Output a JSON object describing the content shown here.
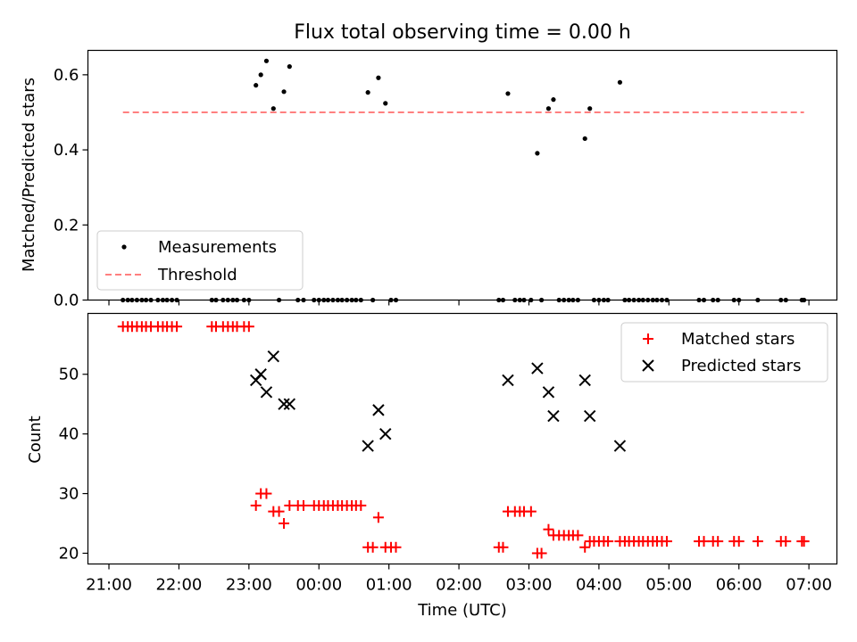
{
  "chart_data": [
    {
      "type": "scatter",
      "title": "Flux total observing time = 0.00 h",
      "xlabel": "",
      "ylabel": "Matched/Predicted stars",
      "x_unit": "hours after 21:00 UTC",
      "xlim": [
        -0.3,
        10.4
      ],
      "ylim": [
        0,
        0.665
      ],
      "yticks": [
        "0.0",
        "0.2",
        "0.4",
        "0.6"
      ],
      "legend_position": "lower-left",
      "series": [
        {
          "name": "Measurements",
          "style": "dot",
          "color": "#000000",
          "points": [
            [
              0.2,
              0
            ],
            [
              0.27,
              0
            ],
            [
              0.33,
              0
            ],
            [
              0.4,
              0
            ],
            [
              0.47,
              0
            ],
            [
              0.53,
              0
            ],
            [
              0.6,
              0
            ],
            [
              0.7,
              0
            ],
            [
              0.77,
              0
            ],
            [
              0.83,
              0
            ],
            [
              0.9,
              0
            ],
            [
              0.97,
              0
            ],
            [
              1.47,
              0
            ],
            [
              1.53,
              0
            ],
            [
              1.63,
              0
            ],
            [
              1.7,
              0
            ],
            [
              1.77,
              0
            ],
            [
              1.83,
              0
            ],
            [
              1.93,
              0
            ],
            [
              2.0,
              0
            ],
            [
              2.1,
              0.572
            ],
            [
              2.17,
              0.6
            ],
            [
              2.25,
              0.637
            ],
            [
              2.35,
              0.51
            ],
            [
              2.43,
              0
            ],
            [
              2.5,
              0.555
            ],
            [
              2.58,
              0.622
            ],
            [
              2.7,
              0
            ],
            [
              2.78,
              0
            ],
            [
              2.93,
              0
            ],
            [
              3.0,
              0
            ],
            [
              3.07,
              0
            ],
            [
              3.13,
              0
            ],
            [
              3.2,
              0
            ],
            [
              3.27,
              0
            ],
            [
              3.33,
              0
            ],
            [
              3.4,
              0
            ],
            [
              3.47,
              0
            ],
            [
              3.53,
              0
            ],
            [
              3.6,
              0
            ],
            [
              3.7,
              0.553
            ],
            [
              3.77,
              0
            ],
            [
              3.85,
              0.592
            ],
            [
              3.95,
              0.524
            ],
            [
              4.03,
              0
            ],
            [
              4.1,
              0
            ],
            [
              5.57,
              0
            ],
            [
              5.63,
              0
            ],
            [
              5.7,
              0.55
            ],
            [
              5.8,
              0
            ],
            [
              5.87,
              0
            ],
            [
              5.93,
              0
            ],
            [
              6.03,
              0
            ],
            [
              6.12,
              0.391
            ],
            [
              6.18,
              0
            ],
            [
              6.28,
              0.51
            ],
            [
              6.35,
              0.534
            ],
            [
              6.43,
              0
            ],
            [
              6.5,
              0
            ],
            [
              6.57,
              0
            ],
            [
              6.63,
              0
            ],
            [
              6.7,
              0
            ],
            [
              6.8,
              0.43
            ],
            [
              6.87,
              0.51
            ],
            [
              6.93,
              0
            ],
            [
              7.0,
              0
            ],
            [
              7.07,
              0
            ],
            [
              7.13,
              0
            ],
            [
              7.3,
              0.58
            ],
            [
              7.37,
              0
            ],
            [
              7.43,
              0
            ],
            [
              7.5,
              0
            ],
            [
              7.57,
              0
            ],
            [
              7.63,
              0
            ],
            [
              7.7,
              0
            ],
            [
              7.77,
              0
            ],
            [
              7.83,
              0
            ],
            [
              7.9,
              0
            ],
            [
              7.97,
              0
            ],
            [
              8.43,
              0
            ],
            [
              8.5,
              0
            ],
            [
              8.63,
              0
            ],
            [
              8.7,
              0
            ],
            [
              8.93,
              0
            ],
            [
              9.0,
              0
            ],
            [
              9.27,
              0
            ],
            [
              9.6,
              0
            ],
            [
              9.67,
              0
            ],
            [
              9.9,
              0
            ],
            [
              9.93,
              0
            ]
          ]
        },
        {
          "name": "Threshold",
          "style": "dashed-line",
          "color": "#ff7f7f",
          "points": [
            [
              0.2,
              0.5
            ],
            [
              9.93,
              0.5
            ]
          ]
        }
      ]
    },
    {
      "type": "scatter",
      "title": "",
      "xlabel": "Time (UTC)",
      "ylabel": "Count",
      "x_unit": "hours after 21:00 UTC",
      "xlim": [
        -0.3,
        10.4
      ],
      "ylim": [
        18.2,
        60.2
      ],
      "yticks": [
        "20",
        "30",
        "40",
        "50"
      ],
      "xticks": [
        "21:00",
        "22:00",
        "23:00",
        "00:00",
        "01:00",
        "02:00",
        "03:00",
        "04:00",
        "05:00",
        "06:00",
        "07:00"
      ],
      "legend_position": "upper-right",
      "series": [
        {
          "name": "Matched stars",
          "marker": "plus",
          "color": "#ff0000",
          "points": [
            [
              0.2,
              58
            ],
            [
              0.27,
              58
            ],
            [
              0.33,
              58
            ],
            [
              0.4,
              58
            ],
            [
              0.47,
              58
            ],
            [
              0.53,
              58
            ],
            [
              0.6,
              58
            ],
            [
              0.7,
              58
            ],
            [
              0.77,
              58
            ],
            [
              0.83,
              58
            ],
            [
              0.9,
              58
            ],
            [
              0.97,
              58
            ],
            [
              1.47,
              58
            ],
            [
              1.53,
              58
            ],
            [
              1.63,
              58
            ],
            [
              1.7,
              58
            ],
            [
              1.77,
              58
            ],
            [
              1.83,
              58
            ],
            [
              1.93,
              58
            ],
            [
              2.0,
              58
            ],
            [
              2.1,
              28
            ],
            [
              2.17,
              30
            ],
            [
              2.25,
              30
            ],
            [
              2.35,
              27
            ],
            [
              2.43,
              27
            ],
            [
              2.5,
              25
            ],
            [
              2.58,
              28
            ],
            [
              2.7,
              28
            ],
            [
              2.78,
              28
            ],
            [
              2.93,
              28
            ],
            [
              3.0,
              28
            ],
            [
              3.07,
              28
            ],
            [
              3.13,
              28
            ],
            [
              3.2,
              28
            ],
            [
              3.27,
              28
            ],
            [
              3.33,
              28
            ],
            [
              3.4,
              28
            ],
            [
              3.47,
              28
            ],
            [
              3.53,
              28
            ],
            [
              3.6,
              28
            ],
            [
              3.7,
              21
            ],
            [
              3.77,
              21
            ],
            [
              3.85,
              26
            ],
            [
              3.95,
              21
            ],
            [
              4.03,
              21
            ],
            [
              4.1,
              21
            ],
            [
              5.57,
              21
            ],
            [
              5.63,
              21
            ],
            [
              5.7,
              27
            ],
            [
              5.8,
              27
            ],
            [
              5.87,
              27
            ],
            [
              5.93,
              27
            ],
            [
              6.03,
              27
            ],
            [
              6.12,
              20
            ],
            [
              6.18,
              20
            ],
            [
              6.28,
              24
            ],
            [
              6.35,
              23
            ],
            [
              6.43,
              23
            ],
            [
              6.5,
              23
            ],
            [
              6.57,
              23
            ],
            [
              6.63,
              23
            ],
            [
              6.7,
              23
            ],
            [
              6.8,
              21
            ],
            [
              6.87,
              22
            ],
            [
              6.93,
              22
            ],
            [
              7.0,
              22
            ],
            [
              7.07,
              22
            ],
            [
              7.13,
              22
            ],
            [
              7.3,
              22
            ],
            [
              7.37,
              22
            ],
            [
              7.43,
              22
            ],
            [
              7.5,
              22
            ],
            [
              7.57,
              22
            ],
            [
              7.63,
              22
            ],
            [
              7.7,
              22
            ],
            [
              7.77,
              22
            ],
            [
              7.83,
              22
            ],
            [
              7.9,
              22
            ],
            [
              7.97,
              22
            ],
            [
              8.43,
              22
            ],
            [
              8.5,
              22
            ],
            [
              8.63,
              22
            ],
            [
              8.7,
              22
            ],
            [
              8.93,
              22
            ],
            [
              9.0,
              22
            ],
            [
              9.27,
              22
            ],
            [
              9.6,
              22
            ],
            [
              9.67,
              22
            ],
            [
              9.9,
              22
            ],
            [
              9.93,
              22
            ]
          ]
        },
        {
          "name": "Predicted stars",
          "marker": "x",
          "color": "#000000",
          "points": [
            [
              2.1,
              49
            ],
            [
              2.17,
              50
            ],
            [
              2.25,
              47
            ],
            [
              2.35,
              53
            ],
            [
              2.5,
              45
            ],
            [
              2.58,
              45
            ],
            [
              3.7,
              38
            ],
            [
              3.85,
              44
            ],
            [
              3.95,
              40
            ],
            [
              5.7,
              49
            ],
            [
              6.12,
              51
            ],
            [
              6.28,
              47
            ],
            [
              6.35,
              43
            ],
            [
              6.8,
              49
            ],
            [
              6.87,
              43
            ],
            [
              7.3,
              38
            ]
          ]
        }
      ]
    }
  ]
}
